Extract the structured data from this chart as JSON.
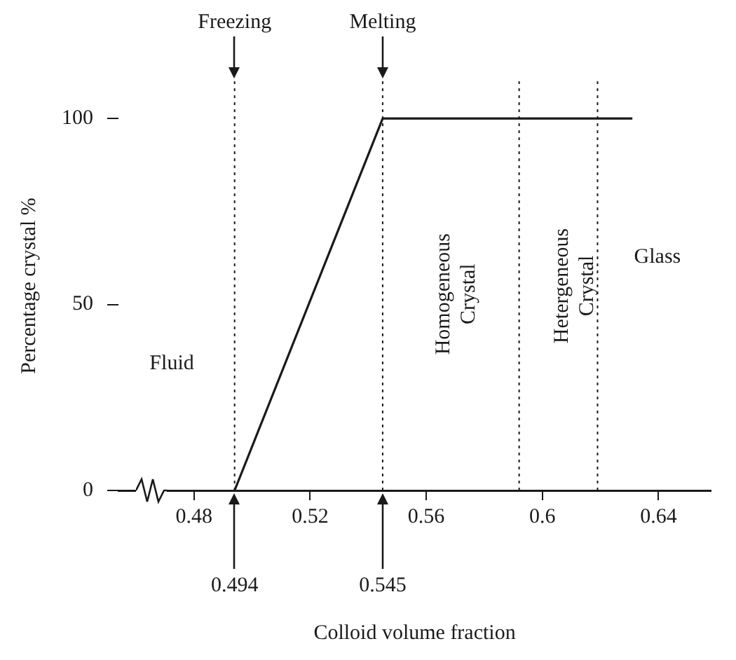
{
  "chart_data": {
    "type": "line",
    "xlabel": "Colloid volume fraction",
    "ylabel": "Percentage crystal %",
    "xlim": [
      0.454,
      0.658
    ],
    "xticks": [
      0.48,
      0.52,
      0.56,
      0.6,
      0.64
    ],
    "ylim": [
      0,
      110
    ],
    "yticks": [
      0,
      50,
      100
    ],
    "series": [
      {
        "type": "line",
        "color": "#1a1a1a",
        "x": [
          0.494,
          0.545,
          0.631
        ],
        "values": [
          0,
          100,
          100
        ]
      }
    ],
    "ref_lines": [
      {
        "axis": "x",
        "value": 0.494,
        "label": "Freezing",
        "line_style": "dotted",
        "color": "#1a1a1a"
      },
      {
        "axis": "x",
        "value": 0.545,
        "label": "Melting",
        "line_style": "dotted",
        "color": "#1a1a1a"
      },
      {
        "axis": "x",
        "value": 0.592,
        "line_style": "dotted",
        "color": "#1a1a1a"
      },
      {
        "axis": "x",
        "value": 0.619,
        "line_style": "dotted",
        "color": "#1a1a1a"
      }
    ],
    "annotations": [
      {
        "text": "0.494",
        "x": 0.494,
        "y": 0
      },
      {
        "text": "0.545",
        "x": 0.545,
        "y": 0
      },
      "Fluid",
      "Homogeneous Crystal",
      "Hetergeneous Crystal",
      "Glass"
    ],
    "grid": false,
    "legend": false
  }
}
